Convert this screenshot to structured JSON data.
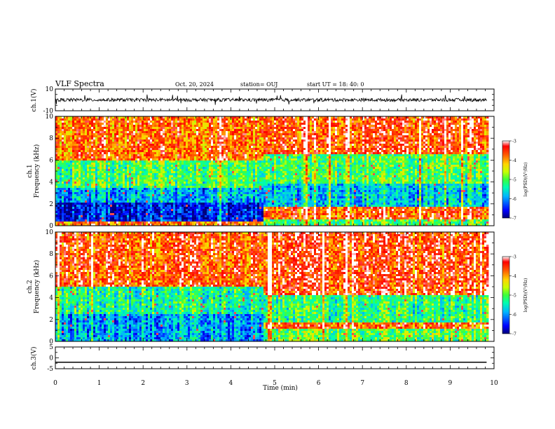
{
  "header": {
    "title": "VLF Spectra",
    "date": "Oct. 20, 2024",
    "station": "station= OUJ",
    "start": "start  UT  =   18: 40: 0"
  },
  "chart_data": [
    {
      "type": "line",
      "panel": "ch1_waveform",
      "ylabel": "ch.1(V)",
      "ylim": [
        -10,
        10
      ],
      "yticks": [
        10,
        -10
      ],
      "description_values": {
        "baseline_v": 0,
        "typical_amplitude_v": 1.5,
        "max_spike_v": 5
      }
    },
    {
      "type": "heatmap",
      "panel": "ch1_spectrogram",
      "ylabel": "ch.1\nFrequency  (kHz)",
      "ylim": [
        0,
        10
      ],
      "yticks": [
        0,
        2,
        4,
        6,
        8,
        10
      ],
      "colorbar": {
        "label": "log(PSD)(V²/Hz)",
        "range": [
          -7,
          -3
        ],
        "ticks": [
          -3,
          -4,
          -5,
          -6,
          -7
        ],
        "colors": [
          "#00007a",
          "#0000ff",
          "#00b4ff",
          "#00ffb0",
          "#3cff3c",
          "#c8ff00",
          "#ffd400",
          "#ff5a00",
          "#ff0000",
          "#ffffff"
        ]
      },
      "step_time_min": 4.7,
      "bands_before_step": [
        {
          "f_khz": [
            0.3,
            2.2
          ],
          "log_psd": -6.6
        },
        {
          "f_khz": [
            2.2,
            3.5
          ],
          "log_psd": -5.9
        },
        {
          "f_khz": [
            3.5,
            6.0
          ],
          "log_psd": -5.1
        },
        {
          "f_khz": [
            6.0,
            10.0
          ],
          "log_psd": -3.8
        }
      ],
      "bands_after_step": [
        {
          "f_khz": [
            0.0,
            0.6
          ],
          "log_psd": -5.0
        },
        {
          "f_khz": [
            0.6,
            1.8
          ],
          "log_psd": -3.6
        },
        {
          "f_khz": [
            1.8,
            3.8
          ],
          "log_psd": -5.7
        },
        {
          "f_khz": [
            3.8,
            6.5
          ],
          "log_psd": -5.0
        },
        {
          "f_khz": [
            6.5,
            10.0
          ],
          "log_psd": -3.5
        }
      ]
    },
    {
      "type": "heatmap",
      "panel": "ch2_spectrogram",
      "ylabel": "ch.2\nFrequency  (kHz)",
      "ylim": [
        0,
        10
      ],
      "yticks": [
        0,
        2,
        4,
        6,
        8,
        10
      ],
      "colorbar": {
        "label": "log(PSD)(V²/Hz)",
        "range": [
          -7,
          -3
        ],
        "ticks": [
          -3,
          -4,
          -5,
          -6,
          -7
        ],
        "colors": [
          "#00007a",
          "#0000ff",
          "#00b4ff",
          "#00ffb0",
          "#3cff3c",
          "#c8ff00",
          "#ffd400",
          "#ff5a00",
          "#ff0000",
          "#ffffff"
        ]
      },
      "step_time_min": 4.7,
      "bands_before_step": [
        {
          "f_khz": [
            0.0,
            2.5
          ],
          "log_psd": -5.9
        },
        {
          "f_khz": [
            2.5,
            5.0
          ],
          "log_psd": -5.3
        },
        {
          "f_khz": [
            5.0,
            10.0
          ],
          "log_psd": -3.6
        }
      ],
      "bands_after_step": [
        {
          "f_khz": [
            0.0,
            1.2
          ],
          "log_psd": -5.0
        },
        {
          "f_khz": [
            1.2,
            1.8
          ],
          "log_psd": -3.7
        },
        {
          "f_khz": [
            1.8,
            4.2
          ],
          "log_psd": -5.2
        },
        {
          "f_khz": [
            4.2,
            10.0
          ],
          "log_psd": -3.5
        }
      ]
    },
    {
      "type": "line",
      "panel": "ch3_waveform",
      "ylabel": "ch.3(V)",
      "ylim": [
        -5,
        5
      ],
      "yticks": [
        5,
        0,
        -5
      ],
      "x": [
        0,
        9.83
      ],
      "y": [
        -2.0,
        -2.0
      ]
    }
  ],
  "x_axis": {
    "label": "Time  (min)",
    "range": [
      0,
      10
    ],
    "data_end_min": 9.83,
    "ticks": [
      0,
      1,
      2,
      3,
      4,
      5,
      6,
      7,
      8,
      9,
      10
    ]
  }
}
